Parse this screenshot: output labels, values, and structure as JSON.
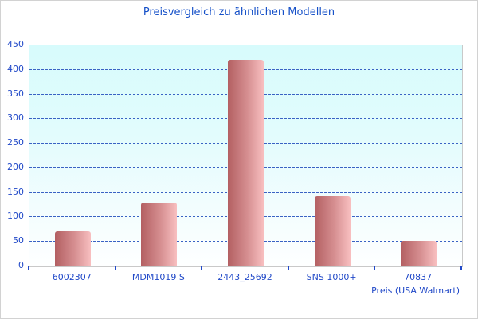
{
  "chart_data": {
    "type": "bar",
    "title": "Preisvergleich zu ähnlichen Modellen",
    "xlabel": "Preis (USA Walmart)",
    "ylabel": "",
    "categories": [
      "6002307",
      "MDM1019 S",
      "2443_25692",
      "SNS 1000+",
      "70837"
    ],
    "values": [
      72,
      130,
      420,
      143,
      52
    ],
    "ylim": [
      0,
      450
    ],
    "y_ticks": [
      0,
      50,
      100,
      150,
      200,
      250,
      300,
      350,
      400,
      450
    ],
    "grid": "horizontal-dashed",
    "legend": "none",
    "colors": {
      "title_text": "#1550c8",
      "axis_text": "#2149c8",
      "gridline": "#3a62c4",
      "bar_gradient_left": "#b35f62",
      "bar_gradient_right": "#f8bfc0",
      "plot_bg_top": "#d7fbfc",
      "plot_bg_bottom": "#feffff",
      "plot_border": "#c9c9c9",
      "outer_border": "#d2d2d2"
    }
  }
}
